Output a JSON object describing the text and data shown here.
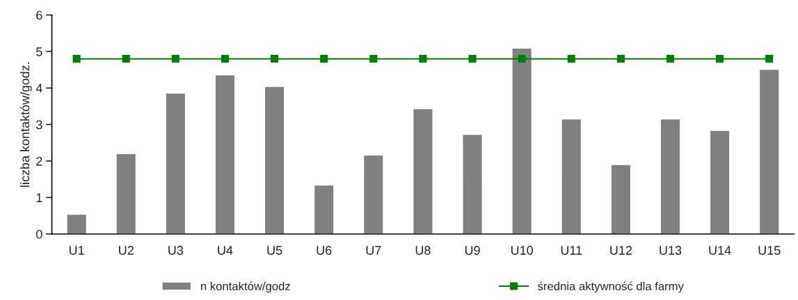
{
  "chart_data": {
    "type": "bar",
    "ylabel": "liczba kontaktów/godz.",
    "categories": [
      "U1",
      "U2",
      "U3",
      "U4",
      "U5",
      "U6",
      "U7",
      "U8",
      "U9",
      "U10",
      "U11",
      "U12",
      "U13",
      "U14",
      "U15"
    ],
    "series": [
      {
        "name": "n kontaktów/godz",
        "color": "#808080",
        "values": [
          0.54,
          2.2,
          3.86,
          4.36,
          4.04,
          1.34,
          2.16,
          3.43,
          2.73,
          5.09,
          3.15,
          1.9,
          3.15,
          2.84,
          4.51
        ]
      },
      {
        "name": "średnia aktywność dla farmy",
        "type": "line",
        "color": "#008000",
        "marker": "square",
        "values": [
          4.8,
          4.8,
          4.8,
          4.8,
          4.8,
          4.8,
          4.8,
          4.8,
          4.8,
          4.8,
          4.8,
          4.8,
          4.8,
          4.8,
          4.8
        ]
      }
    ],
    "ylim": [
      0,
      6
    ],
    "yticks": [
      0,
      1,
      2,
      3,
      4,
      5,
      6
    ],
    "grid": false,
    "legend": "bottom"
  }
}
